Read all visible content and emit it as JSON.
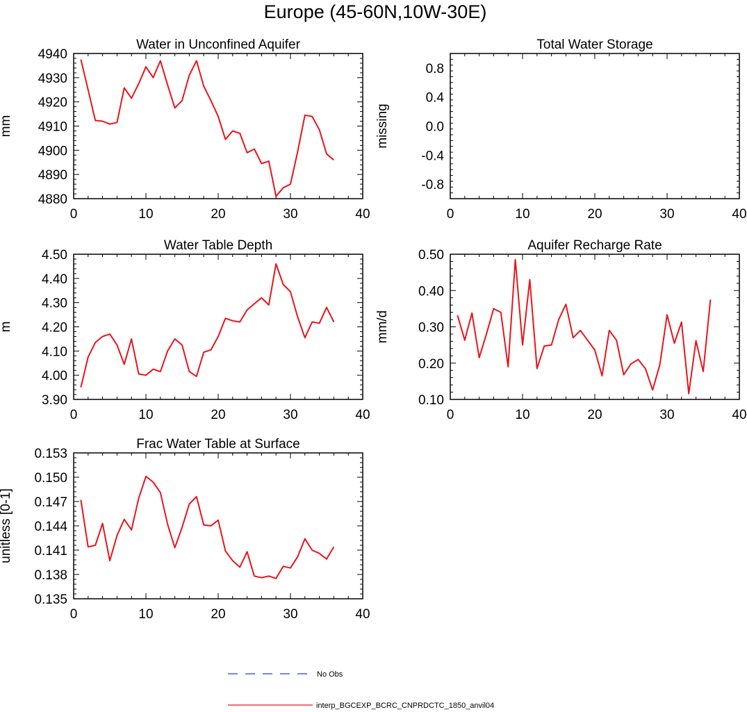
{
  "chart_data": {
    "title": "Europe (45-60N,10W-30E)",
    "type": "line",
    "panels": [
      {
        "id": "water-unconfined-aquifer",
        "title": "Water in Unconfined Aquifer",
        "ylabel": "mm",
        "xlim": [
          0,
          40
        ],
        "ylim": [
          4880,
          4940
        ],
        "x_ticks": [
          0,
          10,
          20,
          30,
          40
        ],
        "y_ticks": [
          4880,
          4890,
          4900,
          4910,
          4920,
          4930,
          4940
        ],
        "tick_decimals": 0,
        "series": [
          {
            "name": "interp_BGCEXP_BCRC_CNPRDCTC_1850_anvil04",
            "color": "#e8141b",
            "x": [
              1,
              2,
              3,
              4,
              5,
              6,
              7,
              8,
              9,
              10,
              11,
              12,
              13,
              14,
              15,
              16,
              17,
              18,
              19,
              20,
              21,
              22,
              23,
              24,
              25,
              26,
              27,
              28,
              29,
              30,
              31,
              32,
              33,
              34,
              35,
              36
            ],
            "values": [
              4937.5,
              4925,
              4912.3,
              4912,
              4910.8,
              4911.5,
              4925.8,
              4921.5,
              4927.5,
              4934.5,
              4930,
              4937,
              4927,
              4917.5,
              4920.5,
              4931,
              4937,
              4926.5,
              4920.5,
              4914,
              4904.5,
              4908,
              4907,
              4899,
              4900.5,
              4894.5,
              4895.5,
              4881,
              4884.5,
              4886,
              4899.5,
              4914.5,
              4914,
              4908.5,
              4898.5,
              4896
            ]
          }
        ]
      },
      {
        "id": "total-water-storage",
        "title": "Total Water Storage",
        "ylabel": "missing",
        "xlim": [
          0,
          40
        ],
        "ylim": [
          -1,
          1
        ],
        "x_ticks": [
          0,
          10,
          20,
          30,
          40
        ],
        "y_ticks": [
          -0.8,
          -0.4,
          0.0,
          0.4,
          0.8
        ],
        "tick_decimals": 1,
        "series": []
      },
      {
        "id": "water-table-depth",
        "title": "Water Table Depth",
        "ylabel": "m",
        "xlim": [
          0,
          40
        ],
        "ylim": [
          3.9,
          4.5
        ],
        "x_ticks": [
          0,
          10,
          20,
          30,
          40
        ],
        "y_ticks": [
          3.9,
          4.0,
          4.1,
          4.2,
          4.3,
          4.4,
          4.5
        ],
        "tick_decimals": 2,
        "series": [
          {
            "name": "interp_BGCEXP_BCRC_CNPRDCTC_1850_anvil04",
            "color": "#e8141b",
            "x": [
              1,
              2,
              3,
              4,
              5,
              6,
              7,
              8,
              9,
              10,
              11,
              12,
              13,
              14,
              15,
              16,
              17,
              18,
              19,
              20,
              21,
              22,
              23,
              24,
              25,
              26,
              27,
              28,
              29,
              30,
              31,
              32,
              33,
              34,
              35,
              36
            ],
            "values": [
              3.95,
              4.075,
              4.135,
              4.16,
              4.17,
              4.125,
              4.045,
              4.15,
              4.005,
              4.0,
              4.025,
              4.015,
              4.1,
              4.15,
              4.125,
              4.015,
              3.995,
              4.095,
              4.105,
              4.16,
              4.235,
              4.225,
              4.22,
              4.27,
              4.295,
              4.32,
              4.29,
              4.46,
              4.375,
              4.345,
              4.24,
              4.155,
              4.22,
              4.215,
              4.28,
              4.22
            ]
          }
        ]
      },
      {
        "id": "aquifer-recharge-rate",
        "title": "Aquifer Recharge Rate",
        "ylabel": "mm/d",
        "xlim": [
          0,
          40
        ],
        "ylim": [
          0.1,
          0.5
        ],
        "x_ticks": [
          0,
          10,
          20,
          30,
          40
        ],
        "y_ticks": [
          0.1,
          0.2,
          0.3,
          0.4,
          0.5
        ],
        "tick_decimals": 2,
        "series": [
          {
            "name": "interp_BGCEXP_BCRC_CNPRDCTC_1850_anvil04",
            "color": "#e8141b",
            "x": [
              1,
              2,
              3,
              4,
              5,
              6,
              7,
              8,
              9,
              10,
              11,
              12,
              13,
              14,
              15,
              16,
              17,
              18,
              19,
              20,
              21,
              22,
              23,
              24,
              25,
              26,
              27,
              28,
              29,
              30,
              31,
              32,
              33,
              34,
              35,
              36
            ],
            "values": [
              0.332,
              0.263,
              0.338,
              0.215,
              0.28,
              0.35,
              0.34,
              0.19,
              0.485,
              0.25,
              0.43,
              0.185,
              0.247,
              0.25,
              0.32,
              0.362,
              0.27,
              0.29,
              0.263,
              0.236,
              0.165,
              0.29,
              0.263,
              0.168,
              0.198,
              0.21,
              0.185,
              0.126,
              0.196,
              0.333,
              0.255,
              0.313,
              0.116,
              0.262,
              0.177,
              0.375
            ]
          }
        ]
      },
      {
        "id": "frac-water-table-surface",
        "title": "Frac Water Table at Surface",
        "ylabel": "unitless [0-1]",
        "xlim": [
          0,
          40
        ],
        "ylim": [
          0.135,
          0.153
        ],
        "x_ticks": [
          0,
          10,
          20,
          30,
          40
        ],
        "y_ticks": [
          0.135,
          0.138,
          0.141,
          0.144,
          0.147,
          0.15,
          0.153
        ],
        "tick_decimals": 3,
        "series": [
          {
            "name": "interp_BGCEXP_BCRC_CNPRDCTC_1850_anvil04",
            "color": "#e8141b",
            "x": [
              1,
              2,
              3,
              4,
              5,
              6,
              7,
              8,
              9,
              10,
              11,
              12,
              13,
              14,
              15,
              16,
              17,
              18,
              19,
              20,
              21,
              22,
              23,
              24,
              25,
              26,
              27,
              28,
              29,
              30,
              31,
              32,
              33,
              34,
              35,
              36
            ],
            "values": [
              0.1472,
              0.1414,
              0.1416,
              0.1443,
              0.1397,
              0.1428,
              0.1448,
              0.1435,
              0.1474,
              0.1501,
              0.1494,
              0.1481,
              0.1442,
              0.1413,
              0.1438,
              0.1467,
              0.1476,
              0.1441,
              0.144,
              0.1447,
              0.1409,
              0.1397,
              0.1389,
              0.1408,
              0.1378,
              0.1376,
              0.1378,
              0.1375,
              0.139,
              0.1388,
              0.1402,
              0.1424,
              0.141,
              0.1406,
              0.1399,
              0.1414
            ]
          }
        ]
      }
    ],
    "legend": [
      {
        "label": "No Obs",
        "color": "#1f3de8",
        "style": "dashed"
      },
      {
        "label": "interp_BGCEXP_BCRC_CNPRDCTC_1850_anvil04",
        "color": "#e8141b",
        "style": "solid"
      }
    ]
  }
}
